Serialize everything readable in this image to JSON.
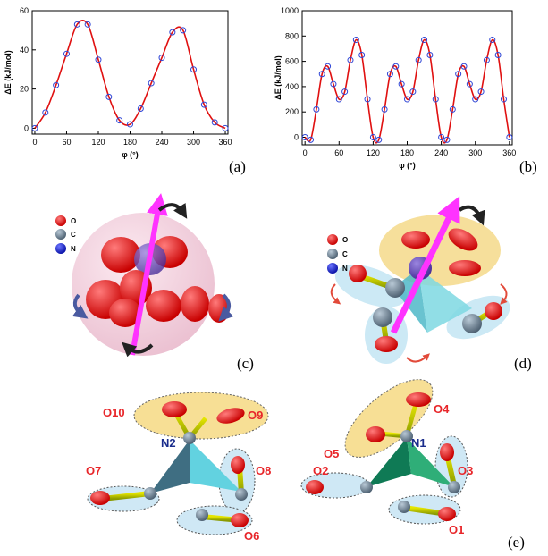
{
  "chart_data": [
    {
      "type": "line",
      "ylabel": "ΔE (kJ/mol)",
      "xlabel": "φ (°)",
      "color": "#e01010",
      "marker_color": "#2f46d6",
      "x": [
        0,
        20,
        40,
        60,
        80,
        100,
        120,
        140,
        160,
        180,
        200,
        220,
        240,
        260,
        280,
        300,
        320,
        340,
        360
      ],
      "values": [
        0,
        8,
        22,
        38,
        53,
        53,
        35,
        16,
        4,
        2,
        10,
        23,
        36,
        49,
        50,
        30,
        12,
        3,
        0
      ],
      "xlim": [
        -5,
        365
      ],
      "ylim": [
        -3,
        60
      ],
      "xticks": [
        0,
        60,
        120,
        180,
        240,
        300,
        360
      ],
      "yticks": [
        0,
        20,
        40,
        60
      ]
    },
    {
      "type": "line",
      "ylabel": "ΔE (kJ/mol)",
      "xlabel": "φ (°)",
      "color": "#e01010",
      "marker_color": "#2f46d6",
      "x": [
        0,
        10,
        20,
        30,
        40,
        50,
        60,
        70,
        80,
        90,
        100,
        110,
        120,
        130,
        140,
        150,
        160,
        170,
        180,
        190,
        200,
        210,
        220,
        230,
        240,
        250,
        260,
        270,
        280,
        290,
        300,
        310,
        320,
        330,
        340,
        350,
        360
      ],
      "values": [
        0,
        -20,
        220,
        500,
        560,
        420,
        300,
        360,
        610,
        770,
        650,
        300,
        0,
        -20,
        220,
        500,
        560,
        420,
        300,
        360,
        610,
        770,
        650,
        300,
        0,
        -20,
        220,
        500,
        560,
        420,
        300,
        360,
        610,
        770,
        650,
        300,
        0
      ],
      "xlim": [
        -5,
        365
      ],
      "ylim": [
        -60,
        1000
      ],
      "xticks": [
        0,
        60,
        120,
        180,
        240,
        300,
        360
      ],
      "yticks": [
        0,
        200,
        400,
        600,
        800,
        1000
      ]
    }
  ],
  "panels": [
    "(a)",
    "(b)",
    "(c)",
    "(d)",
    "(e)"
  ],
  "legend": [
    "O",
    "C",
    "N"
  ],
  "atom_labels": {
    "left": [
      "O10",
      "O9",
      "N2",
      "O7",
      "O8",
      "O6"
    ],
    "right": [
      "O5",
      "O4",
      "N1",
      "O2",
      "O3",
      "O1"
    ]
  }
}
